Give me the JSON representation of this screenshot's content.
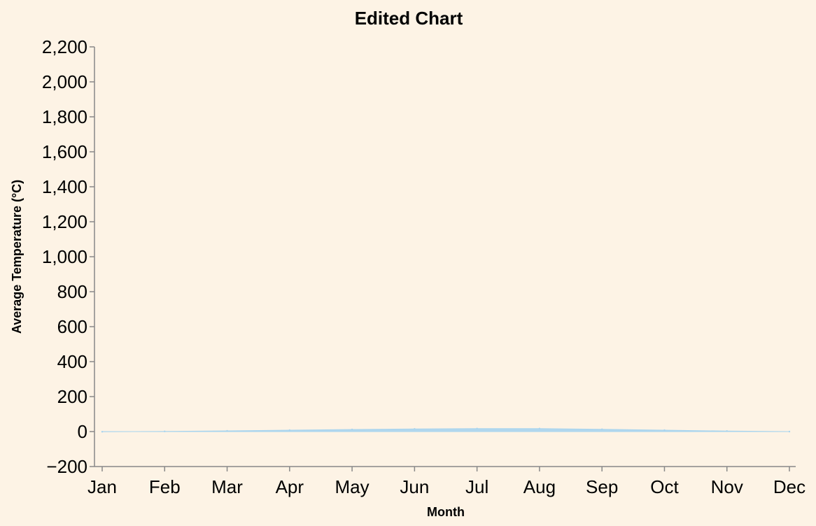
{
  "chart_data": {
    "type": "area",
    "title": "Edited Chart",
    "xlabel": "Month",
    "ylabel": "Average Temperature (°C)",
    "categories": [
      "Jan",
      "Feb",
      "Mar",
      "Apr",
      "May",
      "Jun",
      "Jul",
      "Aug",
      "Sep",
      "Oct",
      "Nov",
      "Dec"
    ],
    "series": [
      {
        "values": [
          -1,
          1,
          4,
          8,
          12,
          15,
          17,
          17,
          13,
          8,
          3,
          0
        ],
        "color": "#a8d4ee"
      }
    ],
    "ylim": [
      -200,
      2200
    ],
    "yticks": [
      -200,
      0,
      200,
      400,
      600,
      800,
      1000,
      1200,
      1400,
      1600,
      1800,
      2000,
      2200
    ],
    "ytick_labels": [
      "−200",
      "0",
      "200",
      "400",
      "600",
      "800",
      "1,000",
      "1,200",
      "1,400",
      "1,600",
      "1,800",
      "2,000",
      "2,200"
    ],
    "grid": false,
    "colors": {
      "background": "#fdf3e5",
      "axis": "#888888"
    }
  }
}
